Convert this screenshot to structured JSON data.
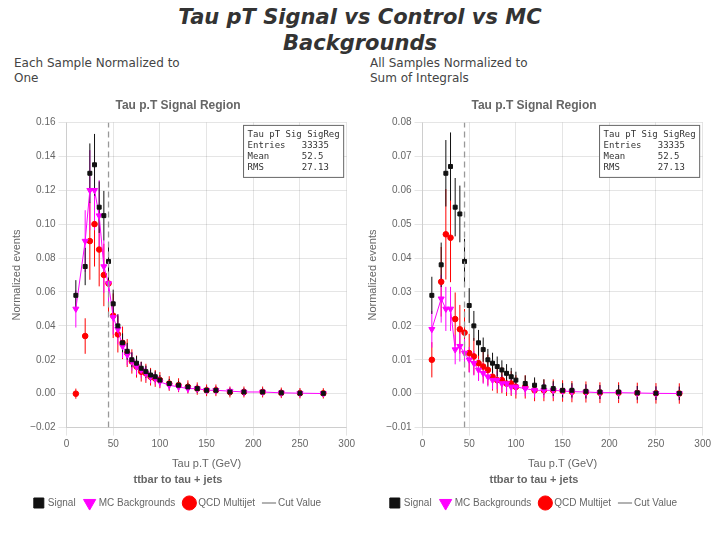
{
  "title": [
    "Tau pT Signal vs Control vs MC",
    "Backgrounds"
  ],
  "chart_data": [
    {
      "type": "scatter",
      "title": "Tau p.T Signal Region",
      "subtitle": [
        "Each Sample Normalized to",
        "One"
      ],
      "annotations": [
        "Tau pT Sig SigReg",
        "Entries   33335",
        "Mean      52.5",
        "RMS       27.13"
      ],
      "x_label": "Tau p.T (GeV)",
      "y_label": "Normalized events",
      "x": [
        10,
        20,
        25,
        30,
        35,
        40,
        45,
        50,
        55,
        60,
        65,
        70,
        75,
        80,
        85,
        90,
        95,
        100,
        110,
        120,
        130,
        140,
        150,
        160,
        175,
        190,
        210,
        230,
        250,
        275
      ],
      "series": [
        {
          "name": "QCD Multijet",
          "type": "scatter",
          "marker": "circle",
          "color": "#ff0000",
          "values": [
            0.0,
            0.034,
            0.09,
            0.1,
            0.085,
            0.07,
            0.065,
            0.046,
            0.035,
            0.03,
            0.024,
            0.019,
            0.016,
            0.013,
            0.012,
            0.01,
            0.009,
            0.008,
            0.006,
            0.005,
            0.004,
            0.003,
            0.002,
            0.002,
            0.001,
            0.001,
            0.001,
            0.0005,
            0.0003,
            0.0002
          ],
          "errors": [
            0.003,
            0.01048,
            0.0228,
            0.025,
            0.0217,
            0.0184,
            0.0173,
            0.01312,
            0.0107,
            0.0096,
            0.00828,
            0.00718,
            0.00652,
            0.00586,
            0.00564,
            0.0052,
            0.00498,
            0.00476,
            0.00432,
            0.0041,
            0.00388,
            0.00366,
            0.00344,
            0.00344,
            0.00322,
            0.00322,
            0.00322,
            0.00311,
            0.003066,
            0.003044
          ]
        },
        {
          "name": "MC Backgrounds",
          "type": "line",
          "marker": "triangle_down",
          "color": "#ff00ff",
          "values": [
            0.05,
            0.09,
            0.12,
            0.12,
            0.105,
            0.075,
            0.065,
            0.045,
            0.038,
            0.028,
            0.023,
            0.019,
            0.016,
            0.014,
            0.012,
            0.01,
            0.009,
            0.007,
            0.005,
            0.004,
            0.003,
            0.003,
            0.002,
            0.002,
            0.0015,
            0.001,
            0.001,
            0.0005,
            0.0003,
            0.0001
          ],
          "errors": [
            0.011,
            0.0182,
            0.0236,
            0.0236,
            0.0209,
            0.0155,
            0.0137,
            0.0101,
            0.00884,
            0.00704,
            0.00614,
            0.00542,
            0.00488,
            0.00452,
            0.00416,
            0.0038,
            0.00362,
            0.00326,
            0.0029,
            0.00272,
            0.00254,
            0.00254,
            0.00236,
            0.00236,
            0.00227,
            0.00218,
            0.00218,
            0.00209,
            0.002054,
            0.002018
          ]
        },
        {
          "name": "Signal",
          "type": "scatter",
          "marker": "square",
          "color": "#111111",
          "values": [
            0.058,
            0.075,
            0.13,
            0.135,
            0.11,
            0.105,
            0.078,
            0.053,
            0.04,
            0.03,
            0.025,
            0.02,
            0.018,
            0.015,
            0.013,
            0.011,
            0.01,
            0.008,
            0.006,
            0.005,
            0.004,
            0.003,
            0.002,
            0.002,
            0.001,
            0.001,
            0.001,
            0.0005,
            0.0003,
            0.0002
          ],
          "errors": [
            0.00896,
            0.011,
            0.0176,
            0.0182,
            0.0152,
            0.0146,
            0.01136,
            0.00836,
            0.0068,
            0.0056,
            0.005,
            0.0044,
            0.00416,
            0.0038,
            0.00356,
            0.00332,
            0.0032,
            0.00296,
            0.00272,
            0.0026,
            0.00248,
            0.00236,
            0.00224,
            0.00224,
            0.00212,
            0.00212,
            0.00212,
            0.00206,
            0.002036,
            0.002024
          ]
        },
        {
          "name": "Cut Value",
          "type": "vline",
          "line_style": "dashed",
          "color": "#999999",
          "x": 45
        }
      ],
      "legend_order": [
        "Signal",
        "MC Backgrounds",
        "QCD Multijet",
        "Cut Value"
      ],
      "legend_title": "ttbar to tau + jets",
      "legend": "bottom",
      "xlim": [
        0,
        300
      ],
      "xticks": [
        0,
        50,
        100,
        150,
        200,
        250,
        300
      ],
      "ylim": [
        -0.02,
        0.16
      ],
      "yticks": [
        {
          "value": -0.02,
          "label": "−0.02"
        },
        {
          "value": 0,
          "label": "0.00"
        },
        0.02,
        0.04,
        0.06,
        0.08,
        {
          "value": 0.1,
          "label": "0.10"
        },
        0.12,
        0.14,
        0.16
      ]
    },
    {
      "type": "scatter",
      "title": "Tau p.T Signal Region",
      "subtitle": [
        "All Samples Normalized to",
        "Sum of Integrals"
      ],
      "annotations": [
        "Tau pT Sig SigReg",
        "Entries   33335",
        "Mean      52.5",
        "RMS       27.13"
      ],
      "x_label": "Tau p.T (GeV)",
      "y_label": "Normalized events",
      "x": [
        10,
        20,
        25,
        30,
        35,
        40,
        45,
        50,
        55,
        60,
        65,
        70,
        75,
        80,
        85,
        90,
        95,
        100,
        110,
        120,
        130,
        140,
        150,
        160,
        175,
        190,
        210,
        230,
        250,
        275
      ],
      "series": [
        {
          "name": "QCD Multijet",
          "type": "scatter",
          "marker": "circle",
          "color": "#ff0000",
          "values": [
            0.01,
            0.033,
            0.047,
            0.046,
            0.022,
            0.019,
            0.018,
            0.012,
            0.011,
            0.009,
            0.008,
            0.007,
            0.005,
            0.004,
            0.004,
            0.003,
            0.003,
            0.002,
            0.002,
            0.001,
            0.001,
            0.001,
            0.0008,
            0.0006,
            0.0005,
            0.0003,
            0.0003,
            0.0002,
            0.0001,
            5e-05
          ],
          "errors": [
            0.0052,
            0.01026,
            0.01334,
            0.01312,
            0.00784,
            0.00718,
            0.00696,
            0.00564,
            0.00542,
            0.00498,
            0.00476,
            0.00454,
            0.0041,
            0.00388,
            0.00388,
            0.00366,
            0.00366,
            0.00344,
            0.00344,
            0.00322,
            0.00322,
            0.00322,
            0.003176,
            0.003132,
            0.00311,
            0.003066,
            0.003066,
            0.003044,
            0.003022,
            0.003011
          ]
        },
        {
          "name": "MC Backgrounds",
          "type": "line",
          "marker": "triangle_down",
          "color": "#ff00ff",
          "values": [
            0.019,
            0.028,
            0.025,
            0.025,
            0.013,
            0.014,
            0.012,
            0.01,
            0.009,
            0.007,
            0.006,
            0.005,
            0.004,
            0.004,
            0.003,
            0.003,
            0.002,
            0.002,
            0.0015,
            0.001,
            0.001,
            0.001,
            0.0008,
            0.0006,
            0.0005,
            0.0003,
            0.0003,
            0.0002,
            0.0001,
            5e-05
          ],
          "errors": [
            0.00542,
            0.00704,
            0.0065,
            0.0065,
            0.00434,
            0.00452,
            0.00416,
            0.0038,
            0.00362,
            0.00326,
            0.00308,
            0.0029,
            0.00272,
            0.00272,
            0.00254,
            0.00254,
            0.00236,
            0.00236,
            0.00227,
            0.00218,
            0.00218,
            0.00218,
            0.002144,
            0.002108,
            0.00209,
            0.002054,
            0.002054,
            0.002036,
            0.002018,
            0.002009
          ]
        },
        {
          "name": "Signal",
          "type": "scatter",
          "marker": "square",
          "color": "#111111",
          "values": [
            0.029,
            0.038,
            0.065,
            0.067,
            0.055,
            0.053,
            0.039,
            0.026,
            0.02,
            0.015,
            0.013,
            0.01,
            0.009,
            0.008,
            0.007,
            0.006,
            0.005,
            0.004,
            0.003,
            0.0025,
            0.002,
            0.0015,
            0.001,
            0.001,
            0.0007,
            0.0005,
            0.0005,
            0.00025,
            0.00015,
            0.0001
          ],
          "errors": [
            0.00548,
            0.00656,
            0.0098,
            0.01004,
            0.0086,
            0.00836,
            0.00668,
            0.00512,
            0.0044,
            0.0038,
            0.00356,
            0.0032,
            0.00308,
            0.00296,
            0.00284,
            0.00272,
            0.0026,
            0.00248,
            0.00236,
            0.0023,
            0.00224,
            0.00218,
            0.00212,
            0.00212,
            0.002084,
            0.00206,
            0.00206,
            0.00203,
            0.002018,
            0.002012
          ]
        },
        {
          "name": "Cut Value",
          "type": "vline",
          "line_style": "dashed",
          "color": "#999999",
          "x": 45
        }
      ],
      "legend_order": [
        "Signal",
        "MC Backgrounds",
        "QCD Multijet",
        "Cut Value"
      ],
      "legend_title": "ttbar to tau + jets",
      "legend": "bottom",
      "xlim": [
        0,
        300
      ],
      "xticks": [
        0,
        50,
        100,
        150,
        200,
        250,
        300
      ],
      "ylim": [
        -0.01,
        0.08
      ],
      "yticks": [
        {
          "value": -0.01,
          "label": "−0.01"
        },
        {
          "value": 0,
          "label": "0.00"
        },
        0.01,
        0.02,
        0.03,
        0.04,
        0.05,
        0.06,
        0.07,
        0.08
      ]
    }
  ]
}
